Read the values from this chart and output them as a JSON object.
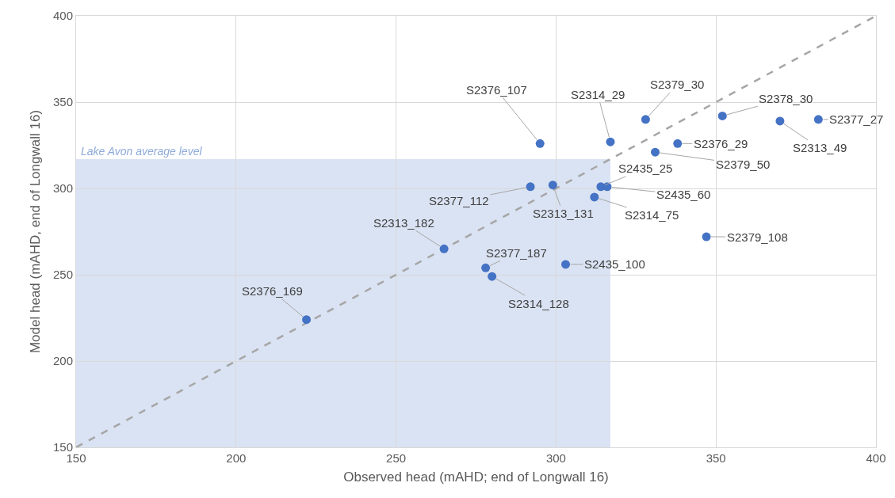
{
  "chart_data": {
    "type": "scatter",
    "xlabel": "Observed head (mAHD; end of Longwall 16)",
    "ylabel": "Model head (mAHD, end of Longwall 16)",
    "xlim": [
      150,
      400
    ],
    "xticks": [
      150,
      200,
      250,
      300,
      350,
      400
    ],
    "ylim": [
      150,
      400
    ],
    "yticks": [
      150,
      200,
      250,
      300,
      350,
      400
    ],
    "grid": true,
    "bands": [
      {
        "axis": "y",
        "from": 150,
        "to": 317,
        "label": "Lake Avon average level",
        "color": "#dae3f3"
      }
    ],
    "series": [
      {
        "type": "line",
        "x": [
          150,
          400
        ],
        "values": [
          150,
          400
        ],
        "color": "#a6a6a6",
        "line_style": "dashed",
        "marker": "none"
      },
      {
        "marker": "circle",
        "color": "#4472c4",
        "x": [
          295,
          317,
          328,
          352,
          382,
          370,
          338,
          331,
          314,
          316,
          312,
          292,
          299,
          265,
          278,
          280,
          303,
          347,
          222
        ],
        "values": [
          326,
          327,
          340,
          342,
          340,
          339,
          326,
          321,
          301,
          301,
          295,
          301,
          302,
          265,
          254,
          249,
          256,
          272,
          224
        ]
      }
    ],
    "annotations": [
      {
        "text": "S2376_107",
        "x": 295,
        "y": 326
      },
      {
        "text": "S2314_29",
        "x": 317,
        "y": 327
      },
      {
        "text": "S2379_30",
        "x": 328,
        "y": 340
      },
      {
        "text": "S2378_30",
        "x": 352,
        "y": 342
      },
      {
        "text": "S2377_27",
        "x": 382,
        "y": 340
      },
      {
        "text": "S2313_49",
        "x": 370,
        "y": 339
      },
      {
        "text": "S2376_29",
        "x": 338,
        "y": 326
      },
      {
        "text": "S2379_50",
        "x": 331,
        "y": 321
      },
      {
        "text": "S2435_25",
        "x": 314,
        "y": 301
      },
      {
        "text": "S2435_60",
        "x": 316,
        "y": 301
      },
      {
        "text": "S2314_75",
        "x": 312,
        "y": 295
      },
      {
        "text": "S2377_112",
        "x": 292,
        "y": 301
      },
      {
        "text": "S2313_131",
        "x": 299,
        "y": 302
      },
      {
        "text": "S2313_182",
        "x": 265,
        "y": 265
      },
      {
        "text": "S2377_187",
        "x": 278,
        "y": 254
      },
      {
        "text": "S2314_128",
        "x": 280,
        "y": 249
      },
      {
        "text": "S2435_100",
        "x": 303,
        "y": 256
      },
      {
        "text": "S2379_108",
        "x": 347,
        "y": 272
      },
      {
        "text": "S2376_169",
        "x": 222,
        "y": 224
      }
    ]
  }
}
